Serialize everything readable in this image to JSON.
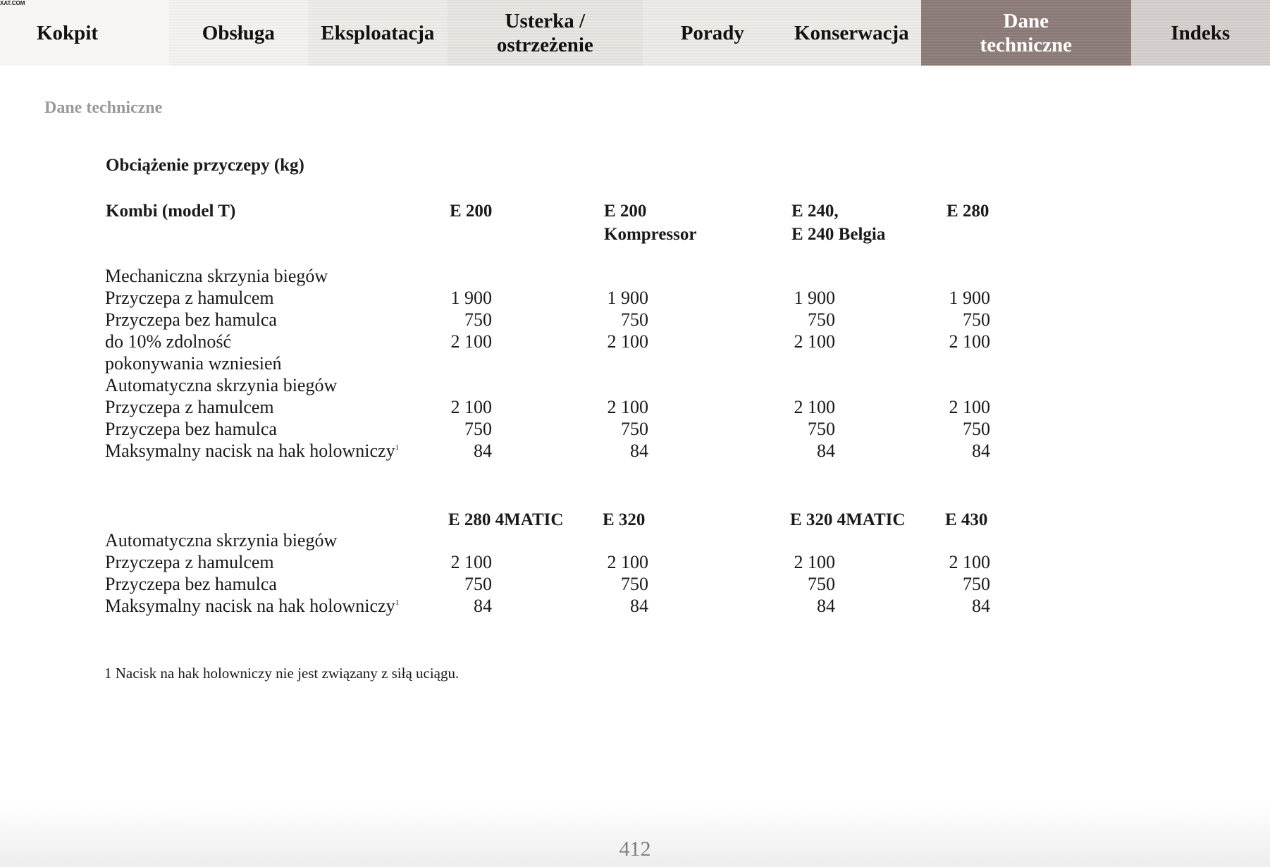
{
  "watermark": "XAT.COM",
  "tabs": [
    {
      "label": "Kokpit",
      "active": false
    },
    {
      "label": "Obsługa",
      "active": false
    },
    {
      "label": "Eksploatacja",
      "active": false
    },
    {
      "label": "Usterka / ostrzeżenie",
      "active": false
    },
    {
      "label": "Porady",
      "active": false
    },
    {
      "label": "Konserwacja",
      "active": false
    },
    {
      "label": "Dane techniczne",
      "active": true
    },
    {
      "label": "Indeks",
      "active": false
    }
  ],
  "accent_color": "#8c7c79",
  "section_title": "Dane techniczne",
  "heading": "Obciążenie przyczepy (kg)",
  "block1": {
    "row_header": "Kombi (model T)",
    "models": [
      "E 200",
      "E 200\nKompressor",
      "E 240,\nE 240 Belgia",
      "E 280"
    ],
    "rows": [
      {
        "label": "Mechaniczna skrzynia biegów",
        "values": []
      },
      {
        "label": "Przyczepa z hamulcem",
        "values": [
          "1 900",
          "1 900",
          "1 900",
          "1 900"
        ]
      },
      {
        "label": "Przyczepa bez hamulca",
        "values": [
          "750",
          "750",
          "750",
          "750"
        ]
      },
      {
        "label": "do 10% zdolność",
        "values": [
          "2 100",
          "2 100",
          "2 100",
          "2 100"
        ]
      },
      {
        "label": "pokonywania wzniesień",
        "values": []
      },
      {
        "label": "Automatyczna skrzynia biegów",
        "values": []
      },
      {
        "label": "Przyczepa z hamulcem",
        "values": [
          "2 100",
          "2 100",
          "2 100",
          "2 100"
        ]
      },
      {
        "label": "Przyczepa bez hamulca",
        "values": [
          "750",
          "750",
          "750",
          "750"
        ]
      },
      {
        "label": "Maksymalny nacisk na hak holowniczy",
        "sup": "1",
        "values": [
          "84",
          "84",
          "84",
          "84"
        ]
      }
    ]
  },
  "block2": {
    "models": [
      "E 280 4MATIC",
      "E 320",
      "E 320 4MATIC",
      "E 430"
    ],
    "rows": [
      {
        "label": "Automatyczna skrzynia biegów",
        "values": []
      },
      {
        "label": "Przyczepa z hamulcem",
        "values": [
          "2 100",
          "2 100",
          "2 100",
          "2 100"
        ]
      },
      {
        "label": "Przyczepa bez hamulca",
        "values": [
          "750",
          "750",
          "750",
          "750"
        ]
      },
      {
        "label": "Maksymalny nacisk na hak holowniczy",
        "sup": "1",
        "values": [
          "84",
          "84",
          "84",
          "84"
        ]
      }
    ]
  },
  "footnote": "1  Nacisk na hak holowniczy nie jest związany z siłą uciągu.",
  "page_number": "412"
}
